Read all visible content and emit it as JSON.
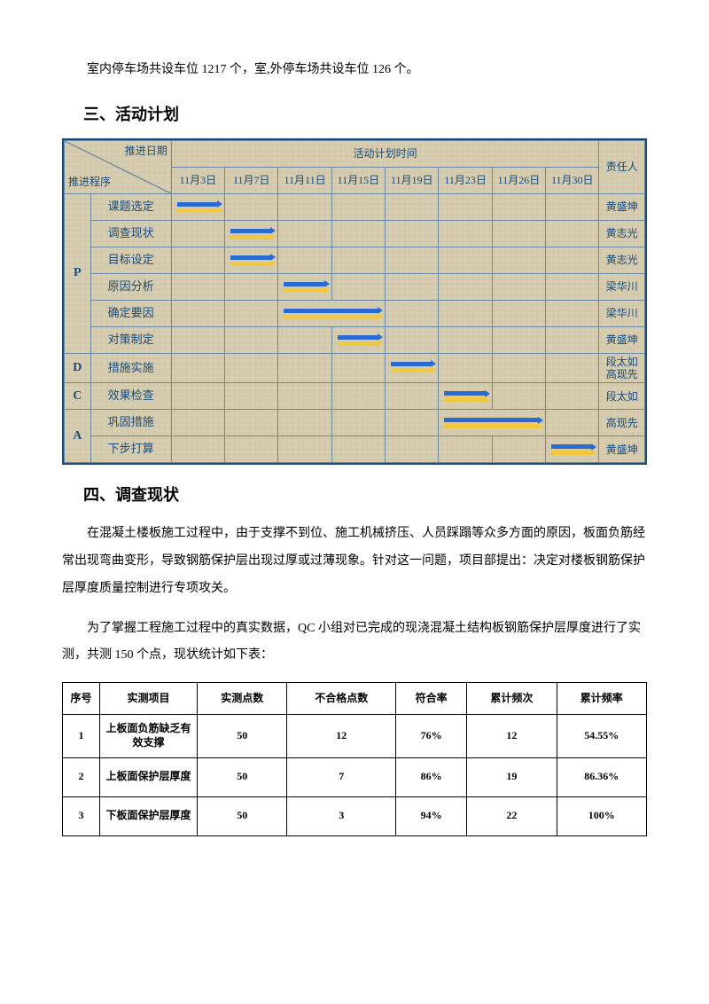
{
  "intro_para": "室内停车场共设车位 1217 个，室,外停车场共设车位 126 个。",
  "section3_title": "三、活动计划",
  "gantt": {
    "header": {
      "diag_top": "推进日期",
      "diag_bot": "推进程序",
      "plan_header": "活动计划时间",
      "resp_header": "责任人",
      "dates": [
        "11月3日",
        "11月7日",
        "11月11日",
        "11月15日",
        "11月19日",
        "11月23日",
        "11月26日",
        "11月30日"
      ]
    },
    "phases": [
      {
        "label": "P",
        "rows": [
          {
            "task": "课题选定",
            "start": 0,
            "span": 1,
            "resp": "黄盛坤"
          },
          {
            "task": "调查现状",
            "start": 1,
            "span": 1,
            "resp": "黄志光"
          },
          {
            "task": "目标设定",
            "start": 1,
            "span": 1,
            "resp": "黄志光"
          },
          {
            "task": "原因分析",
            "start": 2,
            "span": 1,
            "resp": "梁华川"
          },
          {
            "task": "确定要因",
            "start": 2,
            "span": 2,
            "resp": "梁华川"
          },
          {
            "task": "对策制定",
            "start": 3,
            "span": 1,
            "resp": "黄盛坤"
          }
        ]
      },
      {
        "label": "D",
        "rows": [
          {
            "task": "措施实施",
            "start": 4,
            "span": 1,
            "resp": "段太如\n高现先"
          }
        ]
      },
      {
        "label": "C",
        "rows": [
          {
            "task": "效果检查",
            "start": 5,
            "span": 1,
            "resp": "段太如"
          }
        ]
      },
      {
        "label": "A",
        "rows": [
          {
            "task": "巩固措施",
            "start": 5,
            "span": 2,
            "resp": "高现先"
          },
          {
            "task": "下步打算",
            "start": 7,
            "span": 1,
            "resp": "黄盛坤"
          }
        ]
      }
    ]
  },
  "section4_title": "四、调查现状",
  "para4_1": "在混凝土楼板施工过程中，由于支撑不到位、施工机械挤压、人员踩蹋等众多方面的原因，板面负筋经常出现弯曲变形，导致钢筋保护层出现过厚或过薄现象。针对这一问题，项目部提出：决定对楼板钢筋保护层厚度质量控制进行专项攻关。",
  "para4_2": "为了掌握工程施工过程中的真实数据，QC 小组对已完成的现浇混凝土结构板钢筋保护层厚度进行了实测，共测 150 个点，现状统计如下表：",
  "table": {
    "headers": [
      "序号",
      "实测项目",
      "实测点数",
      "不合格点数",
      "符合率",
      "累计频次",
      "累计频率"
    ],
    "rows": [
      [
        "1",
        "上板面负筋缺乏有效支撑",
        "50",
        "12",
        "76%",
        "12",
        "54.55%"
      ],
      [
        "2",
        "上板面保护层厚度",
        "50",
        "7",
        "86%",
        "19",
        "86.36%"
      ],
      [
        "3",
        "下板面保护层厚度",
        "50",
        "3",
        "94%",
        "22",
        "100%"
      ]
    ]
  }
}
